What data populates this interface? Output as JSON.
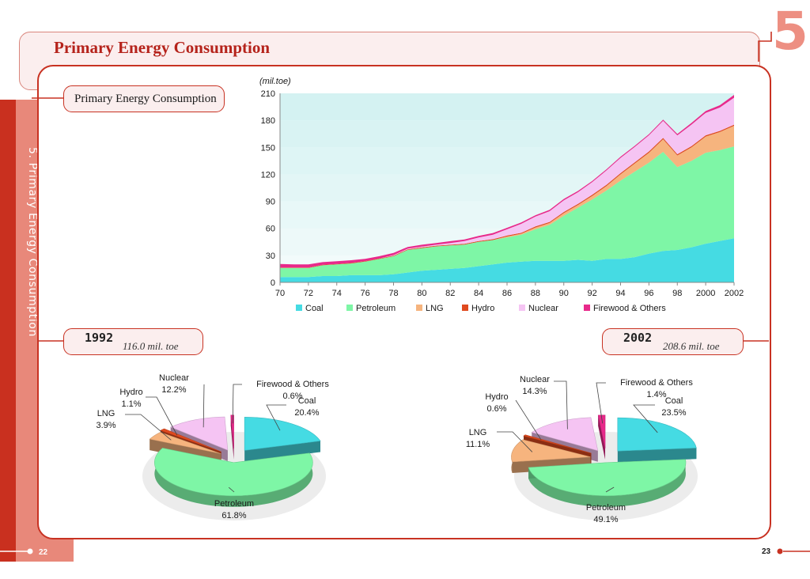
{
  "page": {
    "title": "Primary Energy Consumption",
    "chapter_number": "5",
    "side_label": "5. Primary Energy Consumption",
    "section_title": "Primary Energy Consumption",
    "page_left": "22",
    "page_right": "23"
  },
  "colors": {
    "accent": "#c83222",
    "coal": "#45dbe3",
    "petroleum": "#7ef6a6",
    "lng": "#f6b47e",
    "hydro": "#e04a1f",
    "nuclear": "#f5c4f3",
    "firewood": "#e8298b"
  },
  "pies": [
    {
      "year": "1992",
      "total": "116.0 mil. toe"
    },
    {
      "year": "2002",
      "total": "208.6 mil. toe"
    }
  ],
  "chart_data": [
    {
      "type": "area",
      "stacked": true,
      "ylabel": "(mil.toe)",
      "xlabel": "",
      "ylim": [
        0,
        210
      ],
      "yticks": [
        0,
        30,
        60,
        90,
        120,
        150,
        180,
        210
      ],
      "xlim": [
        1970,
        2002
      ],
      "xtick_labels": [
        "70",
        "72",
        "74",
        "76",
        "78",
        "80",
        "82",
        "84",
        "86",
        "88",
        "90",
        "92",
        "94",
        "96",
        "98",
        "2000",
        "2002"
      ],
      "legend": "bottom",
      "x": [
        1970,
        1971,
        1972,
        1973,
        1974,
        1975,
        1976,
        1977,
        1978,
        1979,
        1980,
        1981,
        1982,
        1983,
        1984,
        1985,
        1986,
        1987,
        1988,
        1989,
        1990,
        1991,
        1992,
        1993,
        1994,
        1995,
        1996,
        1997,
        1998,
        1999,
        2000,
        2001,
        2002
      ],
      "series": [
        {
          "name": "Coal",
          "color": "#45dbe3",
          "values": [
            6,
            6,
            6,
            7,
            7,
            8,
            8,
            8,
            9,
            11,
            13,
            14,
            15,
            16,
            18,
            20,
            22,
            23,
            24,
            24,
            24,
            25,
            24,
            26,
            26,
            28,
            32,
            35,
            36,
            39,
            43,
            46,
            49
          ]
        },
        {
          "name": "Petroleum",
          "color": "#7ef6a6",
          "values": [
            10,
            10,
            10,
            12,
            13,
            13,
            15,
            18,
            20,
            25,
            25,
            26,
            26,
            26,
            27,
            27,
            28,
            30,
            35,
            40,
            50,
            58,
            68,
            76,
            87,
            95,
            101,
            110,
            92,
            96,
            101,
            101,
            102
          ]
        },
        {
          "name": "LNG",
          "color": "#f6b47e",
          "values": [
            0,
            0,
            0,
            0,
            0,
            0,
            0,
            0,
            0,
            0,
            0,
            0,
            0,
            0,
            0,
            0,
            1,
            1,
            2,
            2,
            3,
            3,
            4,
            5,
            7,
            9,
            11,
            14,
            13,
            15,
            18,
            20,
            23
          ]
        },
        {
          "name": "Hydro",
          "color": "#e04a1f",
          "values": [
            0.5,
            0.5,
            0.5,
            0.5,
            0.5,
            0.6,
            0.6,
            0.6,
            0.7,
            0.7,
            0.8,
            0.8,
            0.8,
            0.9,
            0.9,
            1,
            1,
            1,
            1.1,
            1.1,
            1.2,
            1.2,
            1.3,
            1.3,
            1.3,
            1.4,
            1.4,
            1.4,
            1.3,
            1.3,
            1.3,
            1.3,
            1.2
          ]
        },
        {
          "name": "Nuclear",
          "color": "#f5c4f3",
          "values": [
            0,
            0,
            0,
            0,
            0,
            0,
            0,
            0,
            0.6,
            0.7,
            1,
            1,
            2,
            3,
            4,
            5,
            7,
            10,
            11,
            12,
            13,
            13,
            14,
            16,
            17,
            17,
            18,
            19,
            21,
            24,
            25,
            26,
            30
          ]
        },
        {
          "name": "Firewood & Others",
          "color": "#e8298b",
          "values": [
            4,
            3.5,
            3.5,
            3,
            3,
            3,
            2.5,
            2.5,
            2.5,
            2,
            2,
            2,
            2,
            1.8,
            1.8,
            1.8,
            1.6,
            1.6,
            1.5,
            1.5,
            1.5,
            1.4,
            1.3,
            1.3,
            1.3,
            1.3,
            1.3,
            1.3,
            1.5,
            1.8,
            2,
            2.5,
            3
          ]
        }
      ]
    },
    {
      "type": "pie",
      "title": "1992",
      "subtitle": "116.0 mil. toe",
      "labels": [
        "Coal",
        "Petroleum",
        "LNG",
        "Hydro",
        "Nuclear",
        "Firewood & Others"
      ],
      "values": [
        20.4,
        61.8,
        3.9,
        1.1,
        12.2,
        0.6
      ],
      "value_labels": [
        "20.4%",
        "61.8%",
        "3.9%",
        "1.1%",
        "12.2%",
        "0.6%"
      ]
    },
    {
      "type": "pie",
      "title": "2002",
      "subtitle": "208.6 mil. toe",
      "labels": [
        "Coal",
        "Petroleum",
        "LNG",
        "Hydro",
        "Nuclear",
        "Firewood & Others"
      ],
      "values": [
        23.5,
        49.1,
        11.1,
        0.6,
        14.3,
        1.4
      ],
      "value_labels": [
        "23.5%",
        "49.1%",
        "11.1%",
        "0.6%",
        "14.3%",
        "1.4%"
      ]
    }
  ]
}
